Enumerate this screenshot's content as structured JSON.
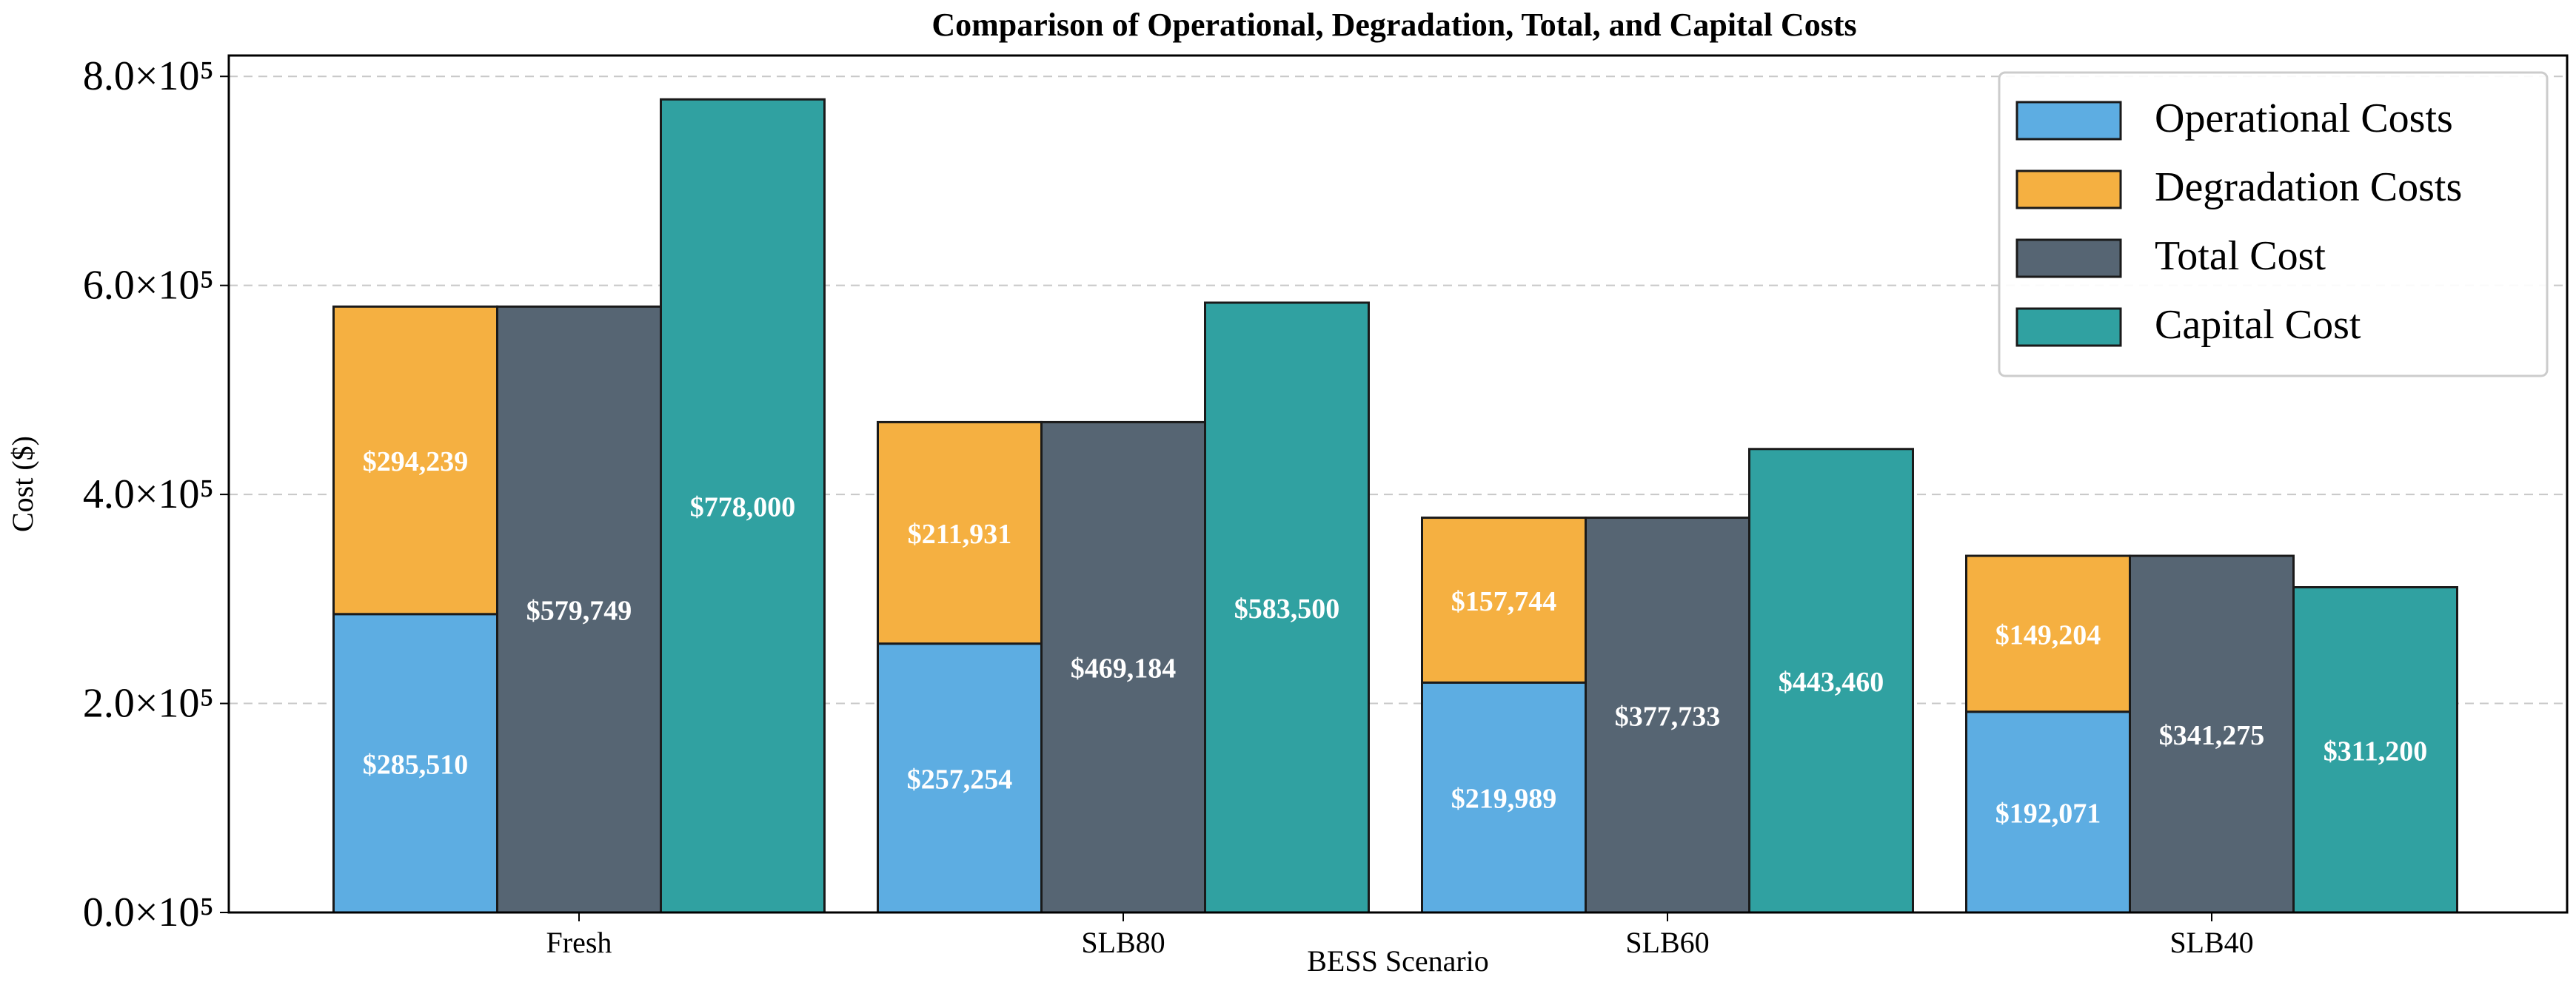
{
  "chart_data": {
    "type": "bar",
    "title": "Comparison of Operational, Degradation, Total, and Capital Costs",
    "xlabel": "BESS Scenario",
    "ylabel": "Cost ($)",
    "ylim": [
      0,
      820000
    ],
    "yticks": [
      {
        "value": 0,
        "label": "0.0×10⁵"
      },
      {
        "value": 200000,
        "label": "2.0×10⁵"
      },
      {
        "value": 400000,
        "label": "4.0×10⁵"
      },
      {
        "value": 600000,
        "label": "6.0×10⁵"
      },
      {
        "value": 800000,
        "label": "8.0×10⁵"
      }
    ],
    "grid": "y-dashed",
    "categories": [
      "Fresh",
      "SLB80",
      "SLB60",
      "SLB40"
    ],
    "series": [
      {
        "name": "Operational Costs",
        "color": "#5DADE2",
        "stack": "op-deg",
        "values": [
          285510,
          257254,
          219989,
          192071
        ],
        "labels": [
          "$285,510",
          "$257,254",
          "$219,989",
          "$192,071"
        ]
      },
      {
        "name": "Degradation Costs",
        "color": "#F5B041",
        "stack": "op-deg",
        "values": [
          294239,
          211931,
          157744,
          149204
        ],
        "labels": [
          "$294,239",
          "$211,931",
          "$157,744",
          "$149,204"
        ]
      },
      {
        "name": "Total Cost",
        "color": "#566573",
        "stack": "total",
        "values": [
          579749,
          469184,
          377733,
          341275
        ],
        "labels": [
          "$579,749",
          "$469,184",
          "$377,733",
          "$341,275"
        ]
      },
      {
        "name": "Capital Cost",
        "color": "#30A1A1",
        "stack": "capital",
        "values": [
          778000,
          583500,
          443460,
          311200
        ],
        "labels": [
          "$778,000",
          "$583,500",
          "$443,460",
          "$311,200"
        ]
      }
    ],
    "legend": "top-right"
  }
}
